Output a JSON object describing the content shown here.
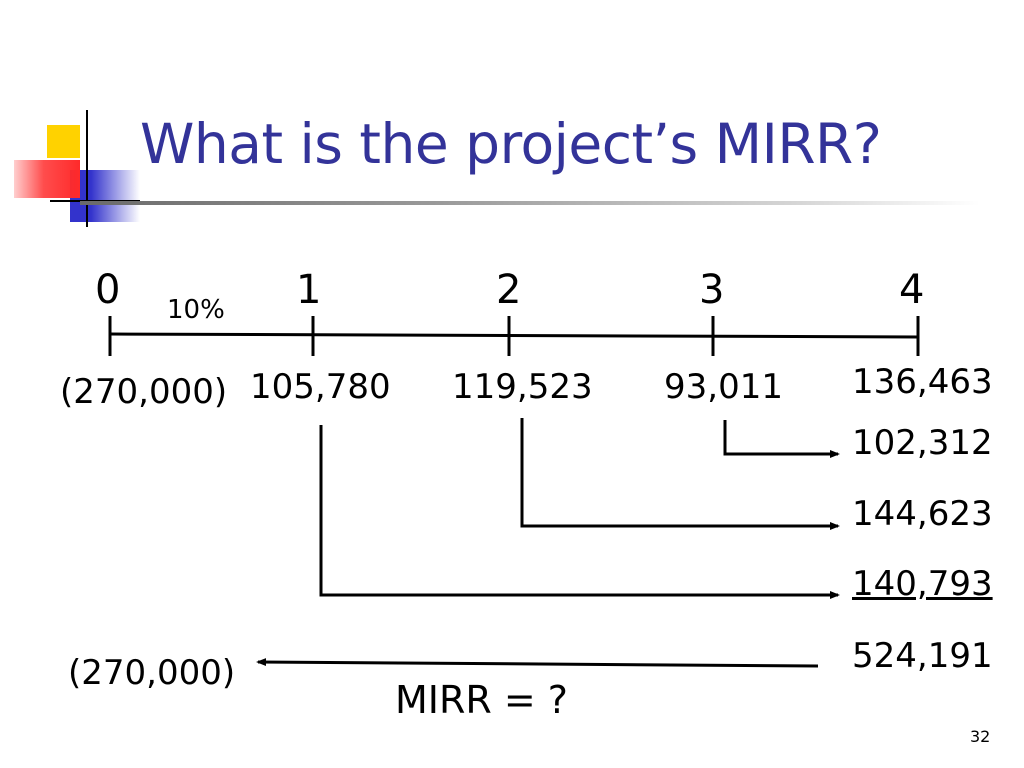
{
  "slide": {
    "title": "What is the project’s MIRR?",
    "slide_number": "32"
  },
  "timeline": {
    "periods": [
      "0",
      "1",
      "2",
      "3",
      "4"
    ],
    "rate": "10%",
    "cash_flows": [
      "(270,000)",
      "105,780",
      "119,523",
      "93,011",
      "136,463"
    ]
  },
  "compounded": {
    "from_period_3": "102,312",
    "from_period_2": "144,623",
    "from_period_1": "140,793",
    "terminal_value": "524,191"
  },
  "present_value": {
    "outflow": "(270,000)",
    "question": "MIRR = ?"
  },
  "colors": {
    "title": "#333399",
    "logo_yellow": "#ffd200",
    "logo_red": "#ff2a2a",
    "logo_blue": "#3333cc"
  }
}
